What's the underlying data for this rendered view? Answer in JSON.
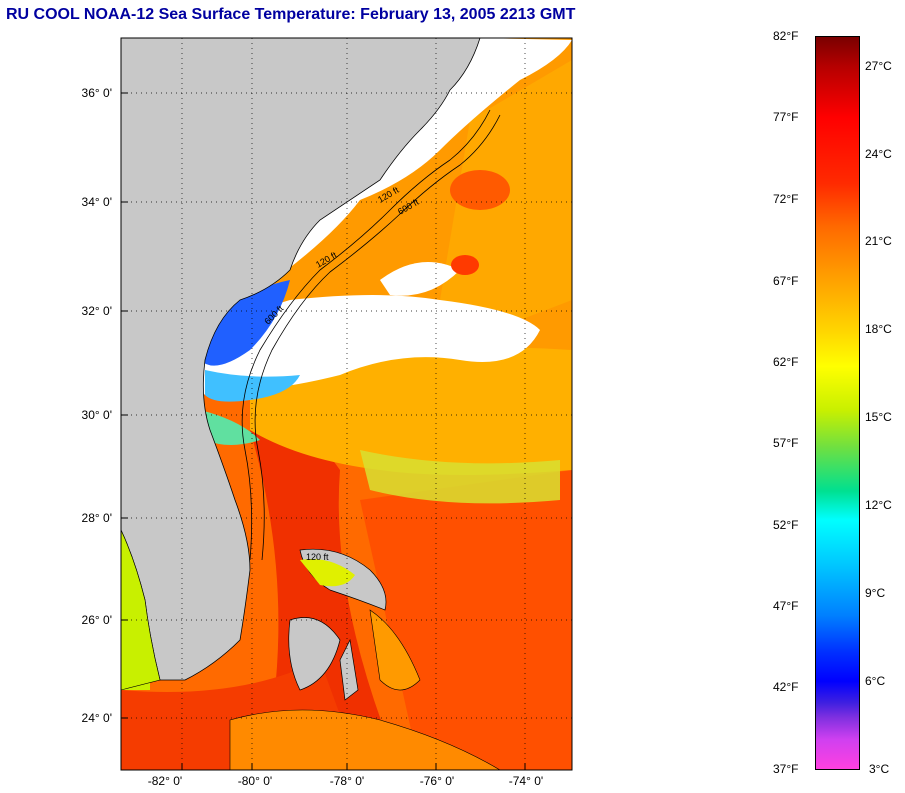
{
  "title": "RU COOL  NOAA-12  Sea Surface Temperature:  February 13, 2005 2213 GMT",
  "lat_labels": [
    "36° 0'",
    "34° 0'",
    "32° 0'",
    "30° 0'",
    "28° 0'",
    "26° 0'",
    "24° 0'"
  ],
  "lon_labels": [
    "-82° 0'",
    "-80° 0'",
    "-78° 0'",
    "-76° 0'",
    "-74° 0'"
  ],
  "depth_labels": [
    "120 ft",
    "600 ft",
    "120 ft",
    "600 ft",
    "120 ft"
  ],
  "colorbar": {
    "fahrenheit": [
      "82°F",
      "77°F",
      "72°F",
      "67°F",
      "62°F",
      "57°F",
      "52°F",
      "47°F",
      "42°F",
      "37°F"
    ],
    "celsius": [
      "27°C",
      "24°C",
      "21°C",
      "18°C",
      "15°C",
      "12°C",
      "9°C",
      "6°C",
      "3°C"
    ]
  },
  "colors": {
    "land": "#c8c8c8",
    "cloud": "#ffffff",
    "title": "#0000a0",
    "warm": "#ff3a00",
    "gulf_stream": "#f02a00"
  }
}
